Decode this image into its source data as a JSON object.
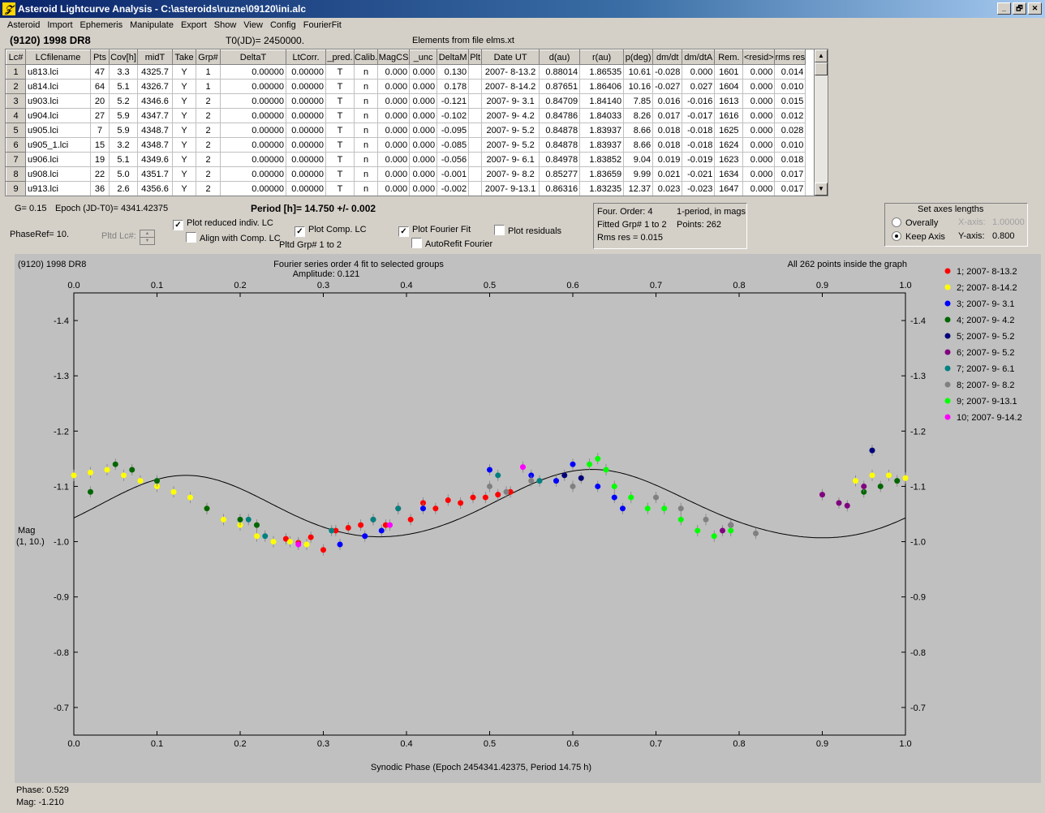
{
  "window": {
    "title": "Asteroid Lightcurve Analysis - C:\\asteroids\\ruzne\\09120\\ini.alc",
    "icon": "app-icon",
    "buttons": [
      "_",
      "🗗",
      "✕"
    ]
  },
  "menu": [
    "Asteroid",
    "Import",
    "Ephemeris",
    "Manipulate",
    "Export",
    "Show",
    "View",
    "Config",
    "FourierFit"
  ],
  "header": {
    "object": "(9120) 1998 DR8",
    "t0": "T0(JD)= 2450000.",
    "elements": "Elements from file elms.xt"
  },
  "table": {
    "columns": [
      "Lc#",
      "LCfilename",
      "Pts",
      "Cov[h]",
      "midT",
      "Take",
      "Grp#",
      "DeltaT",
      "LtCorr.",
      "_pred.",
      "Calib.",
      "MagCS",
      "_unc",
      "DeltaM",
      "Plt",
      "Date UT",
      "d(au)",
      "r(au)",
      "p(deg)",
      "dm/dt",
      "dm/dtA",
      "Rem.",
      "<resid>",
      "rms res"
    ],
    "rows": [
      [
        "1",
        "u813.lci",
        "47",
        "3.3",
        "4325.7",
        "Y",
        "1",
        "0.00000",
        "0.00000",
        "T",
        "n",
        "0.000",
        "0.000",
        "0.130",
        "",
        "2007- 8-13.2",
        "0.88014",
        "1.86535",
        "10.61",
        "-0.028",
        "0.000",
        "1601",
        "0.000",
        "0.014"
      ],
      [
        "2",
        "u814.lci",
        "64",
        "5.1",
        "4326.7",
        "Y",
        "1",
        "0.00000",
        "0.00000",
        "T",
        "n",
        "0.000",
        "0.000",
        "0.178",
        "",
        "2007- 8-14.2",
        "0.87651",
        "1.86406",
        "10.16",
        "-0.027",
        "0.027",
        "1604",
        "0.000",
        "0.010"
      ],
      [
        "3",
        "u903.lci",
        "20",
        "5.2",
        "4346.6",
        "Y",
        "2",
        "0.00000",
        "0.00000",
        "T",
        "n",
        "0.000",
        "0.000",
        "-0.121",
        "",
        "2007- 9- 3.1",
        "0.84709",
        "1.84140",
        "7.85",
        "0.016",
        "-0.016",
        "1613",
        "0.000",
        "0.015"
      ],
      [
        "4",
        "u904.lci",
        "27",
        "5.9",
        "4347.7",
        "Y",
        "2",
        "0.00000",
        "0.00000",
        "T",
        "n",
        "0.000",
        "0.000",
        "-0.102",
        "",
        "2007- 9- 4.2",
        "0.84786",
        "1.84033",
        "8.26",
        "0.017",
        "-0.017",
        "1616",
        "0.000",
        "0.012"
      ],
      [
        "5",
        "u905.lci",
        "7",
        "5.9",
        "4348.7",
        "Y",
        "2",
        "0.00000",
        "0.00000",
        "T",
        "n",
        "0.000",
        "0.000",
        "-0.095",
        "",
        "2007- 9- 5.2",
        "0.84878",
        "1.83937",
        "8.66",
        "0.018",
        "-0.018",
        "1625",
        "0.000",
        "0.028"
      ],
      [
        "6",
        "u905_1.lci",
        "15",
        "3.2",
        "4348.7",
        "Y",
        "2",
        "0.00000",
        "0.00000",
        "T",
        "n",
        "0.000",
        "0.000",
        "-0.085",
        "",
        "2007- 9- 5.2",
        "0.84878",
        "1.83937",
        "8.66",
        "0.018",
        "-0.018",
        "1624",
        "0.000",
        "0.010"
      ],
      [
        "7",
        "u906.lci",
        "19",
        "5.1",
        "4349.6",
        "Y",
        "2",
        "0.00000",
        "0.00000",
        "T",
        "n",
        "0.000",
        "0.000",
        "-0.056",
        "",
        "2007- 9- 6.1",
        "0.84978",
        "1.83852",
        "9.04",
        "0.019",
        "-0.019",
        "1623",
        "0.000",
        "0.018"
      ],
      [
        "8",
        "u908.lci",
        "22",
        "5.0",
        "4351.7",
        "Y",
        "2",
        "0.00000",
        "0.00000",
        "T",
        "n",
        "0.000",
        "0.000",
        "-0.001",
        "",
        "2007- 9- 8.2",
        "0.85277",
        "1.83659",
        "9.99",
        "0.021",
        "-0.021",
        "1634",
        "0.000",
        "0.017"
      ],
      [
        "9",
        "u913.lci",
        "36",
        "2.6",
        "4356.6",
        "Y",
        "2",
        "0.00000",
        "0.00000",
        "T",
        "n",
        "0.000",
        "0.000",
        "-0.002",
        "",
        "2007- 9-13.1",
        "0.86316",
        "1.83235",
        "12.37",
        "0.023",
        "-0.023",
        "1647",
        "0.000",
        "0.017"
      ]
    ]
  },
  "controls": {
    "g": "G= 0.15",
    "epoch": "Epoch (JD-T0)= 4341.42375",
    "period": "Period [h]= 14.750 +/- 0.002",
    "phaseref": "PhaseRef= 10.",
    "pltd_lc": "Pltd Lc#:",
    "plot_reduced": "Plot reduced indiv. LC",
    "align_comp": "Align with Comp. LC",
    "plot_comp": "Plot Comp. LC",
    "pltd_grp": "Pltd Grp#  1   to   2",
    "plot_fourier": "Plot Fourier Fit",
    "autorefit": "AutoRefit Fourier",
    "plot_resid": "Plot residuals",
    "checks": {
      "plot_reduced": true,
      "align_comp": false,
      "plot_comp": true,
      "plot_fourier": true,
      "autorefit": false,
      "plot_resid": false
    }
  },
  "fourier_info": {
    "order": "Four. Order:  4",
    "period_mode": "1-period, in mags",
    "fitted": "Fitted Grp# 1 to 2",
    "points": "Points: 262",
    "rms": "Rms res      = 0.015"
  },
  "axes_panel": {
    "title": "Set axes lengths",
    "overally": "Overally",
    "keep": "Keep Axis",
    "xaxis_label": "X-axis:",
    "xaxis_value": "1.00000",
    "yaxis_label": "Y-axis:",
    "yaxis_value": "0.800",
    "selected": "keep"
  },
  "plot": {
    "title_left": "(9120) 1998 DR8",
    "title_center1": "Fourier series order 4 fit to selected groups",
    "title_center2": "Amplitude: 0.121",
    "title_right": "All 262 points inside the graph",
    "ylabel1": "Mag",
    "ylabel2": "(1, 10.)",
    "xlabel": "Synodic Phase (Epoch 2454341.42375, Period 14.75 h)"
  },
  "chart_data": {
    "type": "scatter",
    "title": "Fourier series order 4 fit to selected groups",
    "xlabel": "Synodic Phase (Epoch 2454341.42375, Period 14.75 h)",
    "ylabel": "Mag",
    "xlim": [
      0.0,
      1.0
    ],
    "ylim": [
      -1.45,
      -0.65
    ],
    "y_inverted": true,
    "xticks": [
      "0.0",
      "0.1",
      "0.2",
      "0.3",
      "0.4",
      "0.5",
      "0.6",
      "0.7",
      "0.8",
      "0.9",
      "1.0"
    ],
    "yticks": [
      "-1.4",
      "-1.3",
      "-1.2",
      "-1.1",
      "-1.0",
      "-0.9",
      "-0.8",
      "-0.7"
    ],
    "fourier_fit": {
      "mean": -1.063,
      "terms": [
        [
          0.008,
          0.004
        ],
        [
          0.004,
          -0.058
        ],
        [
          0.004,
          0.0
        ],
        [
          0.004,
          0.0
        ]
      ]
    },
    "series": [
      {
        "name": "1; 2007- 8-13.2",
        "color": "#ff0000",
        "x": [
          0.255,
          0.27,
          0.285,
          0.3,
          0.315,
          0.33,
          0.345,
          0.36,
          0.375,
          0.39,
          0.405,
          0.42,
          0.435,
          0.45,
          0.465,
          0.48,
          0.495,
          0.51,
          0.525
        ],
        "y": [
          -1.005,
          -0.998,
          -1.008,
          -0.985,
          -1.02,
          -1.025,
          -1.03,
          -1.04,
          -1.03,
          -1.06,
          -1.04,
          -1.07,
          -1.06,
          -1.075,
          -1.07,
          -1.08,
          -1.08,
          -1.085,
          -1.09
        ]
      },
      {
        "name": "2; 2007- 8-14.2",
        "color": "#ffff00",
        "x": [
          0.0,
          0.02,
          0.04,
          0.06,
          0.08,
          0.1,
          0.12,
          0.14,
          0.16,
          0.18,
          0.2,
          0.22,
          0.24,
          0.26,
          0.28,
          0.94,
          0.96,
          0.98,
          1.0
        ],
        "y": [
          -1.12,
          -1.125,
          -1.13,
          -1.12,
          -1.11,
          -1.1,
          -1.09,
          -1.08,
          -1.06,
          -1.04,
          -1.03,
          -1.01,
          -1.0,
          -1.0,
          -0.995,
          -1.11,
          -1.12,
          -1.12,
          -1.115
        ]
      },
      {
        "name": "3; 2007- 9- 3.1",
        "color": "#0000ff",
        "x": [
          0.32,
          0.35,
          0.37,
          0.42,
          0.5,
          0.55,
          0.58,
          0.6,
          0.63,
          0.65,
          0.66
        ],
        "y": [
          -0.995,
          -1.01,
          -1.02,
          -1.06,
          -1.13,
          -1.12,
          -1.11,
          -1.14,
          -1.1,
          -1.08,
          -1.06
        ]
      },
      {
        "name": "4; 2007- 9- 4.2",
        "color": "#006600",
        "x": [
          0.02,
          0.05,
          0.07,
          0.1,
          0.16,
          0.2,
          0.22,
          0.95,
          0.97,
          0.99
        ],
        "y": [
          -1.09,
          -1.14,
          -1.13,
          -1.11,
          -1.06,
          -1.04,
          -1.03,
          -1.09,
          -1.1,
          -1.11
        ]
      },
      {
        "name": "5; 2007- 9- 5.2",
        "color": "#00007a",
        "x": [
          0.59,
          0.61,
          0.96
        ],
        "y": [
          -1.12,
          -1.115,
          -1.165
        ]
      },
      {
        "name": "6; 2007- 9- 5.2",
        "color": "#800080",
        "x": [
          0.78,
          0.79,
          0.9,
          0.92,
          0.93,
          0.95
        ],
        "y": [
          -1.02,
          -1.03,
          -1.085,
          -1.07,
          -1.065,
          -1.1
        ]
      },
      {
        "name": "7; 2007- 9- 6.1",
        "color": "#008080",
        "x": [
          0.21,
          0.23,
          0.31,
          0.36,
          0.39,
          0.51,
          0.56
        ],
        "y": [
          -1.04,
          -1.01,
          -1.02,
          -1.04,
          -1.06,
          -1.12,
          -1.11
        ]
      },
      {
        "name": "8; 2007- 9- 8.2",
        "color": "#808080",
        "x": [
          0.5,
          0.52,
          0.55,
          0.6,
          0.7,
          0.73,
          0.76,
          0.79,
          0.82
        ],
        "y": [
          -1.1,
          -1.09,
          -1.11,
          -1.1,
          -1.08,
          -1.06,
          -1.04,
          -1.03,
          -1.015
        ]
      },
      {
        "name": "9; 2007- 9-13.1",
        "color": "#00ff00",
        "x": [
          0.62,
          0.63,
          0.64,
          0.65,
          0.67,
          0.69,
          0.71,
          0.73,
          0.75,
          0.77,
          0.79
        ],
        "y": [
          -1.14,
          -1.15,
          -1.13,
          -1.1,
          -1.08,
          -1.06,
          -1.06,
          -1.04,
          -1.02,
          -1.01,
          -1.02
        ]
      },
      {
        "name": "10; 2007- 9-14.2",
        "color": "#ff00ff",
        "x": [
          0.27,
          0.38,
          0.54
        ],
        "y": [
          -0.995,
          -1.03,
          -1.135
        ]
      }
    ]
  },
  "status": {
    "phase": "Phase:  0.529",
    "mag": "Mag:    -1.210"
  }
}
